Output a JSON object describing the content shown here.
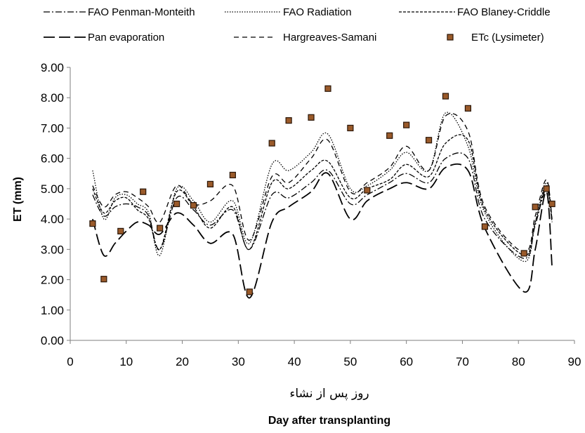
{
  "chart_data": {
    "type": "line",
    "title": "",
    "xlabel": "Day after transplanting",
    "xlabel_fa": "روز پس از نشاء",
    "ylabel": "ET (mm)",
    "xlim": [
      0,
      90
    ],
    "ylim": [
      0,
      9
    ],
    "xticks": [
      "0",
      "10",
      "20",
      "30",
      "40",
      "50",
      "60",
      "70",
      "80",
      "90"
    ],
    "yticks": [
      "0.00",
      "1.00",
      "2.00",
      "3.00",
      "4.00",
      "5.00",
      "6.00",
      "7.00",
      "8.00",
      "9.00"
    ],
    "legend_position": "top",
    "grid": false,
    "series": [
      {
        "name": "FAO Penman-Monteith",
        "style": "dash-dot",
        "color": "#000000",
        "x": [
          4,
          6,
          8,
          10,
          12,
          14,
          16,
          19,
          22,
          25,
          29,
          32,
          36,
          39,
          43,
          46,
          50,
          53,
          57,
          60,
          64,
          67,
          71,
          74,
          81,
          83,
          85,
          86
        ],
        "y": [
          4.8,
          4.1,
          4.4,
          4.5,
          4.4,
          4.1,
          3.0,
          4.7,
          4.3,
          3.8,
          4.3,
          3.0,
          4.8,
          4.7,
          5.2,
          5.6,
          4.5,
          4.8,
          5.2,
          5.5,
          5.2,
          6.0,
          6.0,
          4.0,
          2.7,
          3.8,
          5.0,
          3.9
        ]
      },
      {
        "name": "FAO Radiation",
        "style": "dotted",
        "color": "#000000",
        "x": [
          4,
          6,
          8,
          10,
          12,
          14,
          16,
          19,
          22,
          25,
          29,
          32,
          36,
          39,
          43,
          46,
          50,
          53,
          57,
          60,
          64,
          67,
          71,
          74,
          81,
          83,
          85,
          86
        ],
        "y": [
          5.6,
          4.0,
          4.7,
          4.8,
          4.5,
          4.2,
          2.8,
          5.0,
          4.6,
          3.9,
          4.6,
          3.2,
          5.8,
          5.6,
          6.2,
          6.8,
          5.0,
          5.1,
          5.6,
          6.2,
          5.6,
          7.5,
          6.4,
          4.2,
          2.6,
          3.9,
          5.2,
          4.0
        ]
      },
      {
        "name": "FAO Blaney-Criddle",
        "style": "short-dash",
        "color": "#000000",
        "x": [
          4,
          6,
          8,
          10,
          12,
          14,
          16,
          19,
          22,
          25,
          29,
          32,
          36,
          39,
          43,
          46,
          50,
          53,
          57,
          60,
          64,
          67,
          71,
          74,
          81,
          83,
          85,
          86
        ],
        "y": [
          5.0,
          4.2,
          4.6,
          4.7,
          4.3,
          4.0,
          3.0,
          4.9,
          4.4,
          3.7,
          4.4,
          3.0,
          5.2,
          5.0,
          5.6,
          5.9,
          4.7,
          5.0,
          5.3,
          5.8,
          5.4,
          6.5,
          6.6,
          4.3,
          2.8,
          3.9,
          5.1,
          3.9
        ]
      },
      {
        "name": "Pan evaporation",
        "style": "long-dash",
        "color": "#000000",
        "x": [
          4,
          6,
          8,
          10,
          12,
          14,
          16,
          19,
          22,
          25,
          29,
          32,
          36,
          39,
          43,
          46,
          50,
          53,
          57,
          60,
          64,
          67,
          71,
          74,
          81,
          83,
          85,
          86
        ],
        "y": [
          4.0,
          2.8,
          3.2,
          3.6,
          3.9,
          3.8,
          3.5,
          4.2,
          3.8,
          3.2,
          3.5,
          1.4,
          3.9,
          4.4,
          4.9,
          5.5,
          4.0,
          4.6,
          5.0,
          5.2,
          5.0,
          5.7,
          5.6,
          3.7,
          1.6,
          3.0,
          4.9,
          2.4
        ]
      },
      {
        "name": "Hargreaves-Samani",
        "style": "dash",
        "color": "#000000",
        "x": [
          4,
          6,
          8,
          10,
          12,
          14,
          16,
          19,
          22,
          25,
          29,
          32,
          36,
          39,
          43,
          46,
          50,
          53,
          57,
          60,
          64,
          67,
          71,
          74,
          81,
          83,
          85,
          86
        ],
        "y": [
          5.1,
          4.4,
          4.8,
          4.9,
          4.7,
          4.4,
          3.9,
          5.1,
          4.5,
          4.6,
          5.1,
          3.3,
          5.4,
          5.2,
          6.0,
          6.6,
          4.9,
          5.2,
          5.7,
          6.4,
          5.6,
          7.4,
          6.9,
          4.4,
          2.9,
          4.1,
          5.3,
          4.0
        ]
      }
    ],
    "points": {
      "name": "ETc (Lysimeter)",
      "marker": "square",
      "color": "#9a5a2a",
      "edge": "#2a1608",
      "x": [
        4,
        6,
        9,
        13,
        16,
        19,
        22,
        25,
        29,
        32,
        36,
        39,
        43,
        46,
        50,
        53,
        57,
        60,
        64,
        67,
        71,
        74,
        81,
        83,
        85,
        86
      ],
      "y": [
        3.85,
        2.02,
        3.6,
        4.9,
        3.7,
        4.5,
        4.45,
        5.15,
        5.45,
        1.6,
        6.5,
        7.25,
        7.35,
        8.3,
        7.0,
        4.95,
        6.75,
        7.1,
        6.6,
        8.05,
        7.65,
        3.75,
        2.87,
        4.4,
        5.0,
        4.5
      ]
    }
  }
}
